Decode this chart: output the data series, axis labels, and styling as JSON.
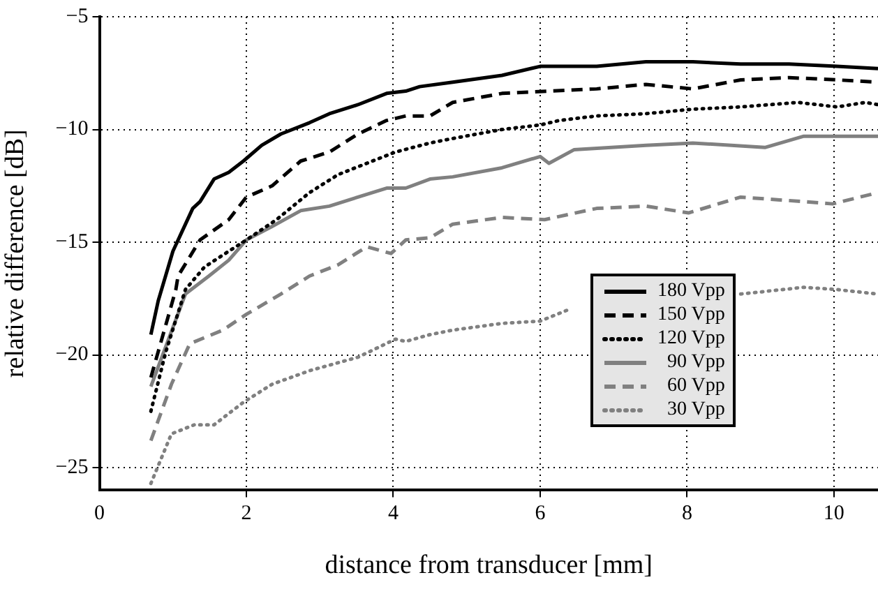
{
  "chart_data": {
    "type": "line",
    "xlabel": "distance from transducer [mm]",
    "ylabel": "relative difference [dB]",
    "xlim": [
      0,
      10.6
    ],
    "xticks": [
      0,
      2,
      4,
      6,
      8,
      10
    ],
    "ylim": [
      -26,
      -5
    ],
    "yticks": [
      -25,
      -20,
      -15,
      -10,
      -5
    ],
    "grid": true,
    "legend": "right",
    "marker": "none",
    "series": [
      {
        "name": "180 Vpp",
        "color": "#000000",
        "line_style": "solid",
        "x": [
          0.7,
          0.8,
          1.0,
          1.27,
          1.37,
          1.56,
          1.76,
          1.96,
          2.21,
          2.47,
          2.86,
          3.13,
          3.52,
          3.91,
          4.17,
          4.36,
          4.81,
          5.48,
          6.0,
          6.77,
          7.44,
          8.08,
          8.73,
          9.39,
          10.04,
          10.6
        ],
        "values": [
          -19.1,
          -17.6,
          -15.4,
          -13.5,
          -13.2,
          -12.2,
          -11.9,
          -11.4,
          -10.7,
          -10.2,
          -9.7,
          -9.3,
          -8.9,
          -8.4,
          -8.3,
          -8.1,
          -7.9,
          -7.6,
          -7.2,
          -7.2,
          -7.0,
          -7.0,
          -7.1,
          -7.1,
          -7.2,
          -7.3
        ]
      },
      {
        "name": "150 Vpp",
        "color": "#000000",
        "line_style": "dashed",
        "x": [
          0.7,
          1.04,
          1.07,
          1.37,
          1.76,
          2.0,
          2.35,
          2.74,
          3.13,
          3.52,
          3.91,
          4.17,
          4.5,
          4.81,
          5.48,
          6.12,
          6.77,
          7.44,
          8.08,
          8.73,
          9.39,
          10.04,
          10.6
        ],
        "values": [
          -21.0,
          -17.1,
          -16.5,
          -14.9,
          -14.0,
          -13.0,
          -12.5,
          -11.4,
          -11.0,
          -10.2,
          -9.6,
          -9.4,
          -9.4,
          -8.8,
          -8.4,
          -8.3,
          -8.2,
          -8.0,
          -8.2,
          -7.8,
          -7.7,
          -7.8,
          -7.9
        ]
      },
      {
        "name": "120 Vpp",
        "color": "#000000",
        "line_style": "dotted",
        "x": [
          0.7,
          0.9,
          1.17,
          1.43,
          1.76,
          2.0,
          2.41,
          2.86,
          3.25,
          3.64,
          4.03,
          4.5,
          4.81,
          5.48,
          6.0,
          6.26,
          6.77,
          7.44,
          8.08,
          8.73,
          9.51,
          10.04,
          10.43,
          10.6
        ],
        "values": [
          -22.5,
          -19.9,
          -17.1,
          -16.1,
          -15.4,
          -14.9,
          -14.0,
          -12.8,
          -12.0,
          -11.5,
          -11.0,
          -10.6,
          -10.4,
          -10.0,
          -9.8,
          -9.6,
          -9.4,
          -9.3,
          -9.1,
          -9.0,
          -8.8,
          -9.0,
          -8.8,
          -8.9
        ]
      },
      {
        "name": "90 Vpp",
        "color": "#808080",
        "line_style": "solid",
        "x": [
          0.7,
          1.17,
          1.49,
          1.76,
          2.0,
          2.35,
          2.74,
          3.13,
          3.52,
          3.91,
          4.17,
          4.5,
          4.81,
          5.48,
          6.0,
          6.12,
          6.46,
          7.44,
          8.08,
          9.06,
          9.59,
          10.04,
          10.6
        ],
        "values": [
          -21.4,
          -17.3,
          -16.5,
          -15.8,
          -14.9,
          -14.3,
          -13.6,
          -13.4,
          -13.0,
          -12.6,
          -12.6,
          -12.2,
          -12.1,
          -11.7,
          -11.2,
          -11.5,
          -10.9,
          -10.7,
          -10.6,
          -10.8,
          -10.3,
          -10.3,
          -10.3
        ]
      },
      {
        "name": "60 Vpp",
        "color": "#808080",
        "line_style": "dashed",
        "x": [
          0.7,
          0.98,
          1.23,
          1.68,
          2.0,
          2.47,
          2.86,
          3.25,
          3.64,
          3.97,
          4.17,
          4.5,
          4.81,
          5.48,
          6.06,
          6.77,
          7.44,
          8.02,
          8.73,
          9.59,
          9.98,
          10.6
        ],
        "values": [
          -23.8,
          -21.3,
          -19.5,
          -18.9,
          -18.2,
          -17.3,
          -16.5,
          -16.0,
          -15.2,
          -15.5,
          -14.9,
          -14.8,
          -14.2,
          -13.9,
          -14.0,
          -13.5,
          -13.4,
          -13.7,
          -13.0,
          -13.2,
          -13.3,
          -12.8
        ]
      },
      {
        "name": "30 Vpp",
        "color": "#808080",
        "line_style": "dotted",
        "x": [
          0.7,
          0.98,
          1.29,
          1.56,
          1.96,
          2.35,
          2.86,
          3.52,
          4.03,
          4.17,
          4.5,
          4.81,
          5.48,
          6.0,
          6.38,
          7.5,
          8.73,
          9.59,
          10.04,
          10.6
        ],
        "values": [
          -25.7,
          -23.5,
          -23.1,
          -23.1,
          -22.1,
          -21.3,
          -20.7,
          -20.1,
          -19.3,
          -19.4,
          -19.1,
          -18.9,
          -18.6,
          -18.5,
          -18.0,
          null,
          -17.3,
          -17.0,
          -17.1,
          -17.3
        ]
      }
    ]
  }
}
